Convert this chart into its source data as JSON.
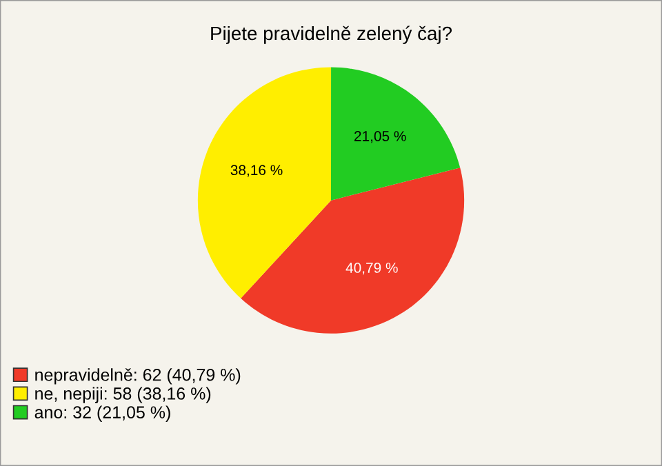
{
  "chart_data": {
    "type": "pie",
    "title": "Pijete pravidelně zelený čaj?",
    "categories": [
      "nepravidelně: 62 (40,79 %)",
      "ne, nepiji: 58 (38,16 %)",
      "ano: 32 (21,05 %)"
    ],
    "values": [
      40.79,
      38.16,
      21.05
    ],
    "colors": [
      "#f03a28",
      "#ffee00",
      "#22cc22"
    ],
    "value_labels": [
      "40,79 %",
      "38,16 %",
      "21,05 %"
    ],
    "legend": "bottom left"
  }
}
